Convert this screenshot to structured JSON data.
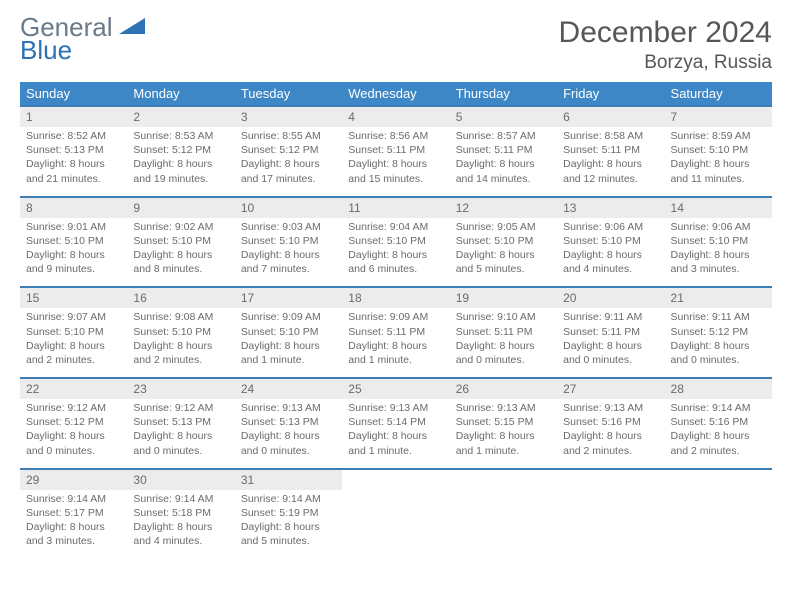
{
  "brand": {
    "line1": "General",
    "line2": "Blue"
  },
  "title": "December 2024",
  "location": "Borzya, Russia",
  "colors": {
    "header_bg": "#3d87c7",
    "rule": "#3d7eb6",
    "daynum_bg": "#ececec",
    "text": "#6b6b6b",
    "title": "#575757",
    "logo_gray": "#6a7a88",
    "logo_blue": "#2d72b5"
  },
  "dow": [
    "Sunday",
    "Monday",
    "Tuesday",
    "Wednesday",
    "Thursday",
    "Friday",
    "Saturday"
  ],
  "weeks": [
    [
      {
        "n": "1",
        "sr": "8:52 AM",
        "ss": "5:13 PM",
        "dl": "8 hours and 21 minutes."
      },
      {
        "n": "2",
        "sr": "8:53 AM",
        "ss": "5:12 PM",
        "dl": "8 hours and 19 minutes."
      },
      {
        "n": "3",
        "sr": "8:55 AM",
        "ss": "5:12 PM",
        "dl": "8 hours and 17 minutes."
      },
      {
        "n": "4",
        "sr": "8:56 AM",
        "ss": "5:11 PM",
        "dl": "8 hours and 15 minutes."
      },
      {
        "n": "5",
        "sr": "8:57 AM",
        "ss": "5:11 PM",
        "dl": "8 hours and 14 minutes."
      },
      {
        "n": "6",
        "sr": "8:58 AM",
        "ss": "5:11 PM",
        "dl": "8 hours and 12 minutes."
      },
      {
        "n": "7",
        "sr": "8:59 AM",
        "ss": "5:10 PM",
        "dl": "8 hours and 11 minutes."
      }
    ],
    [
      {
        "n": "8",
        "sr": "9:01 AM",
        "ss": "5:10 PM",
        "dl": "8 hours and 9 minutes."
      },
      {
        "n": "9",
        "sr": "9:02 AM",
        "ss": "5:10 PM",
        "dl": "8 hours and 8 minutes."
      },
      {
        "n": "10",
        "sr": "9:03 AM",
        "ss": "5:10 PM",
        "dl": "8 hours and 7 minutes."
      },
      {
        "n": "11",
        "sr": "9:04 AM",
        "ss": "5:10 PM",
        "dl": "8 hours and 6 minutes."
      },
      {
        "n": "12",
        "sr": "9:05 AM",
        "ss": "5:10 PM",
        "dl": "8 hours and 5 minutes."
      },
      {
        "n": "13",
        "sr": "9:06 AM",
        "ss": "5:10 PM",
        "dl": "8 hours and 4 minutes."
      },
      {
        "n": "14",
        "sr": "9:06 AM",
        "ss": "5:10 PM",
        "dl": "8 hours and 3 minutes."
      }
    ],
    [
      {
        "n": "15",
        "sr": "9:07 AM",
        "ss": "5:10 PM",
        "dl": "8 hours and 2 minutes."
      },
      {
        "n": "16",
        "sr": "9:08 AM",
        "ss": "5:10 PM",
        "dl": "8 hours and 2 minutes."
      },
      {
        "n": "17",
        "sr": "9:09 AM",
        "ss": "5:10 PM",
        "dl": "8 hours and 1 minute."
      },
      {
        "n": "18",
        "sr": "9:09 AM",
        "ss": "5:11 PM",
        "dl": "8 hours and 1 minute."
      },
      {
        "n": "19",
        "sr": "9:10 AM",
        "ss": "5:11 PM",
        "dl": "8 hours and 0 minutes."
      },
      {
        "n": "20",
        "sr": "9:11 AM",
        "ss": "5:11 PM",
        "dl": "8 hours and 0 minutes."
      },
      {
        "n": "21",
        "sr": "9:11 AM",
        "ss": "5:12 PM",
        "dl": "8 hours and 0 minutes."
      }
    ],
    [
      {
        "n": "22",
        "sr": "9:12 AM",
        "ss": "5:12 PM",
        "dl": "8 hours and 0 minutes."
      },
      {
        "n": "23",
        "sr": "9:12 AM",
        "ss": "5:13 PM",
        "dl": "8 hours and 0 minutes."
      },
      {
        "n": "24",
        "sr": "9:13 AM",
        "ss": "5:13 PM",
        "dl": "8 hours and 0 minutes."
      },
      {
        "n": "25",
        "sr": "9:13 AM",
        "ss": "5:14 PM",
        "dl": "8 hours and 1 minute."
      },
      {
        "n": "26",
        "sr": "9:13 AM",
        "ss": "5:15 PM",
        "dl": "8 hours and 1 minute."
      },
      {
        "n": "27",
        "sr": "9:13 AM",
        "ss": "5:16 PM",
        "dl": "8 hours and 2 minutes."
      },
      {
        "n": "28",
        "sr": "9:14 AM",
        "ss": "5:16 PM",
        "dl": "8 hours and 2 minutes."
      }
    ],
    [
      {
        "n": "29",
        "sr": "9:14 AM",
        "ss": "5:17 PM",
        "dl": "8 hours and 3 minutes."
      },
      {
        "n": "30",
        "sr": "9:14 AM",
        "ss": "5:18 PM",
        "dl": "8 hours and 4 minutes."
      },
      {
        "n": "31",
        "sr": "9:14 AM",
        "ss": "5:19 PM",
        "dl": "8 hours and 5 minutes."
      },
      null,
      null,
      null,
      null
    ]
  ],
  "labels": {
    "sunrise": "Sunrise:",
    "sunset": "Sunset:",
    "daylight": "Daylight:"
  }
}
